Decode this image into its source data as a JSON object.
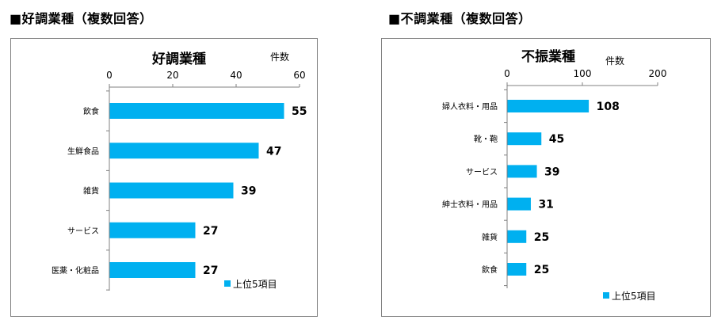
{
  "page": {
    "left_heading": "■好調業種（複数回答）",
    "right_heading": "■不調業種（複数回答）"
  },
  "colors": {
    "bar": "#00b0f0",
    "frame": "#7f7f7f",
    "axis": "#808080"
  },
  "chart_data": [
    {
      "type": "bar",
      "orientation": "horizontal",
      "title": "好調業種",
      "unit_label": "件数",
      "categories": [
        "飲食",
        "生鮮食品",
        "雑貨",
        "サービス",
        "医薬・化粧品"
      ],
      "series": [
        {
          "name": "上位5項目",
          "values": [
            55,
            47,
            39,
            27,
            27
          ]
        }
      ],
      "xlim": [
        0,
        60
      ],
      "ticks": [
        0,
        20,
        40,
        60
      ],
      "legend": "bottom-right",
      "grid": false
    },
    {
      "type": "bar",
      "orientation": "horizontal",
      "title": "不振業種",
      "unit_label": "件数",
      "categories": [
        "婦人衣料・用品",
        "靴・鞄",
        "サービス",
        "紳士衣料・用品",
        "雑貨",
        "飲食"
      ],
      "series": [
        {
          "name": "上位5項目",
          "values": [
            108,
            45,
            39,
            31,
            25,
            25
          ]
        }
      ],
      "xlim": [
        0,
        200
      ],
      "ticks": [
        0,
        100,
        200
      ],
      "legend": "bottom-right",
      "grid": false
    }
  ]
}
